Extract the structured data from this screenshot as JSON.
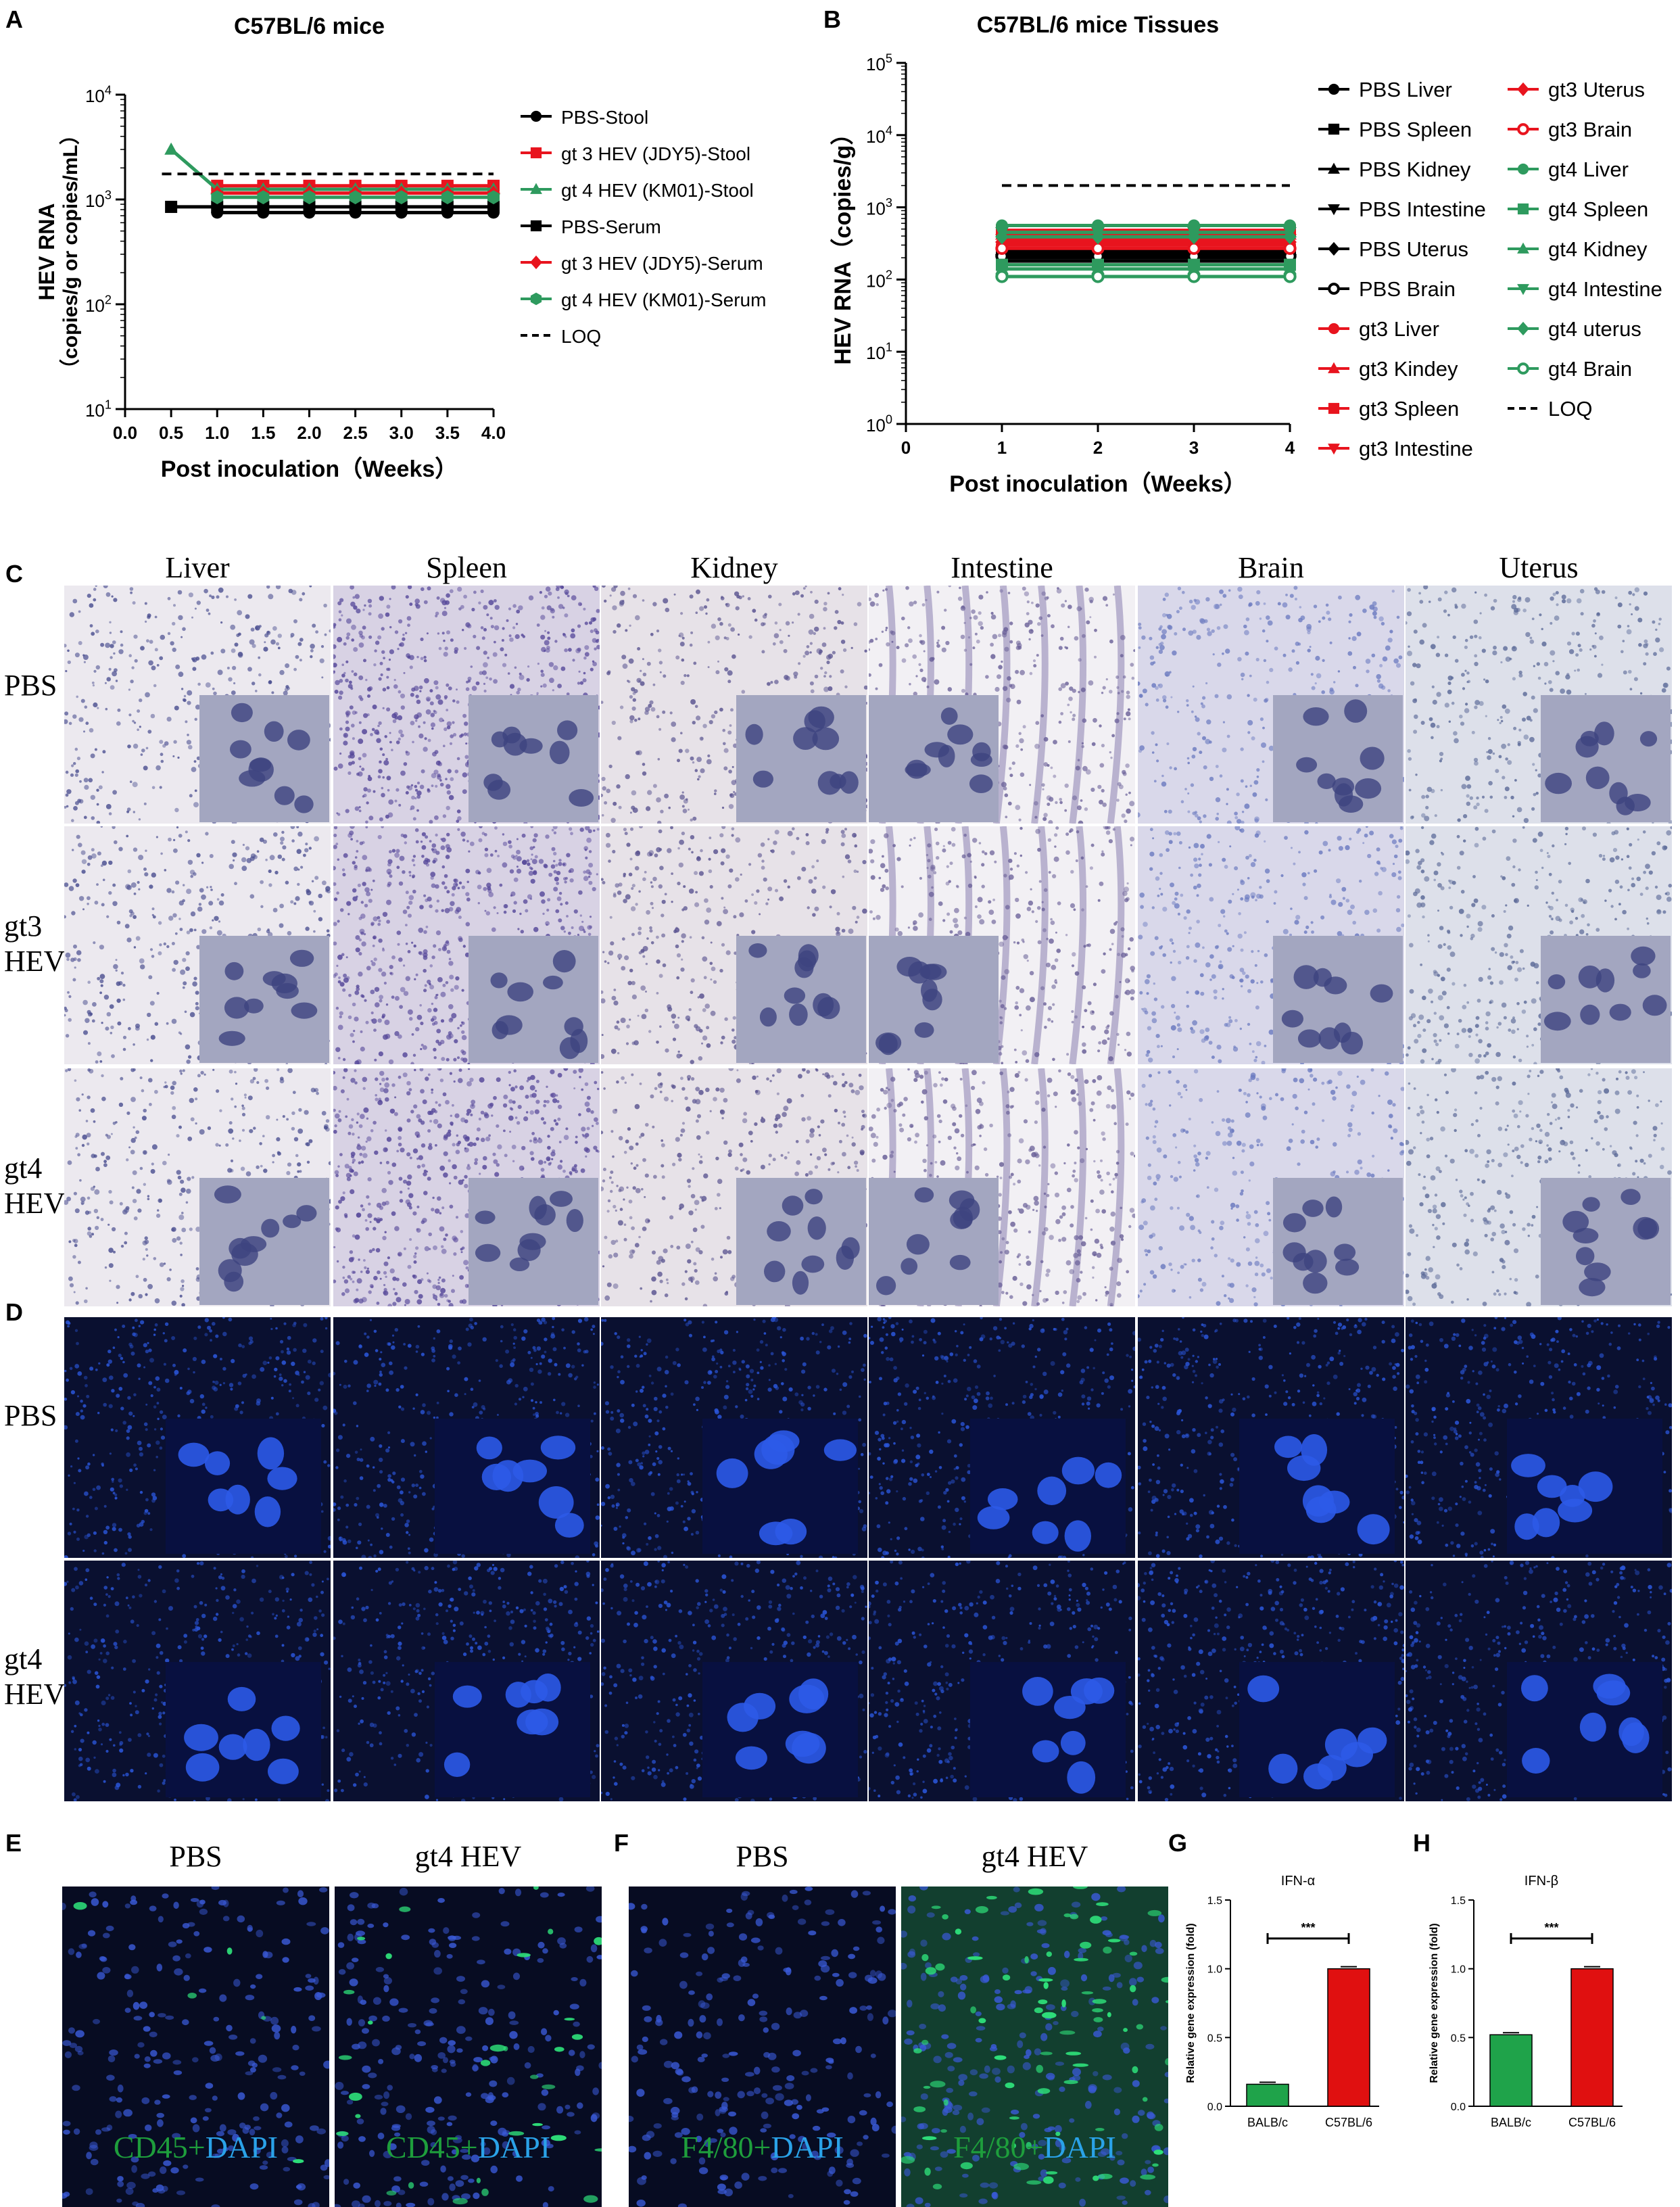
{
  "panels": {
    "A": "A",
    "B": "B",
    "C": "C",
    "D": "D",
    "E": "E",
    "F": "F",
    "G": "G",
    "H": "H"
  },
  "panel_c": {
    "columns": [
      "Liver",
      "Spleen",
      "Kidney",
      "Intestine",
      "Brain",
      "Uterus"
    ],
    "rows": [
      "PBS",
      "gt3\nHEV",
      "gt4\nHEV"
    ]
  },
  "panel_d": {
    "rows": [
      "PBS",
      "gt4\nHEV"
    ]
  },
  "panel_e": {
    "headers": [
      "PBS",
      "gt4 HEV"
    ],
    "captions": [
      {
        "marker": "CD45",
        "sep": "+",
        "dapi": "DAPI"
      },
      {
        "marker": "CD45",
        "sep": "+",
        "dapi": "DAPI"
      }
    ]
  },
  "panel_f": {
    "headers": [
      "PBS",
      "gt4 HEV"
    ],
    "captions": [
      {
        "marker": "F4/80",
        "sep": "+",
        "dapi": "DAPI"
      },
      {
        "marker": "F4/80",
        "sep": "+",
        "dapi": "DAPI"
      }
    ]
  },
  "colors": {
    "black": "#000000",
    "red": "#e8141e",
    "green": "#2e9a5e",
    "he_bg": "#ece8ef",
    "ihc_dot": "#3e4a9a",
    "dapi_bg": "#0a1030",
    "dapi_nucleus": "#2a55d8",
    "fitc": "#2ee07a",
    "bar_green": "#1fa34a",
    "bar_red": "#e01010",
    "caption_green": "#1e9e3c",
    "caption_blue": "#2aa2e8"
  },
  "chart_data": [
    {
      "id": "A",
      "type": "line",
      "title": "C57BL/6 mice",
      "xlabel": "Post inoculation（Weeks）",
      "ylabel": "HEV RNA",
      "ylabel2": "（copies/g or copies/mL）",
      "xlim": [
        0,
        4
      ],
      "ylim": [
        10,
        10000
      ],
      "yscale": "log",
      "xticks": [
        "0.0",
        "0.5",
        "1.0",
        "1.5",
        "2.0",
        "2.5",
        "3.0",
        "3.5",
        "4.0"
      ],
      "yticks": [
        {
          "base": "10",
          "exp": "1"
        },
        {
          "base": "10",
          "exp": "2"
        },
        {
          "base": "10",
          "exp": "3"
        },
        {
          "base": "10",
          "exp": "4"
        }
      ],
      "grid": false,
      "legend_position": "right",
      "series": [
        {
          "name": "PBS-Stool",
          "color": "#000000",
          "marker": "circle",
          "x": [
            1,
            1.5,
            2,
            2.5,
            3,
            3.5,
            4
          ],
          "y": [
            750,
            750,
            750,
            750,
            750,
            750,
            750
          ]
        },
        {
          "name": "gt 3 HEV (JDY5)-Stool",
          "color": "#e8141e",
          "marker": "square",
          "x": [
            1,
            1.5,
            2,
            2.5,
            3,
            3.5,
            4
          ],
          "y": [
            1350,
            1350,
            1350,
            1350,
            1350,
            1350,
            1350
          ]
        },
        {
          "name": "gt 4 HEV (KM01)-Stool",
          "color": "#2e9a5e",
          "marker": "triangle",
          "x": [
            0.5,
            1,
            1.5,
            2,
            2.5,
            3,
            3.5,
            4
          ],
          "y": [
            3000,
            1250,
            1250,
            1250,
            1250,
            1250,
            1250,
            1250
          ]
        },
        {
          "name": "PBS-Serum",
          "color": "#000000",
          "marker": "square",
          "x": [
            0.5,
            1,
            1.5,
            2,
            2.5,
            3,
            3.5,
            4
          ],
          "y": [
            850,
            850,
            850,
            850,
            850,
            850,
            850,
            850
          ]
        },
        {
          "name": "gt 3 HEV (JDY5)-Serum",
          "color": "#e8141e",
          "marker": "diamond",
          "x": [
            1,
            1.5,
            2,
            2.5,
            3,
            3.5,
            4
          ],
          "y": [
            1150,
            1150,
            1150,
            1150,
            1150,
            1150,
            1150
          ]
        },
        {
          "name": "gt 4 HEV (KM01)-Serum",
          "color": "#2e9a5e",
          "marker": "hexagon",
          "x": [
            1,
            1.5,
            2,
            2.5,
            3,
            3.5,
            4
          ],
          "y": [
            1050,
            1050,
            1050,
            1050,
            1050,
            1050,
            1050
          ]
        },
        {
          "name": "LOQ",
          "color": "#000000",
          "marker": "none",
          "dashed": true,
          "x": [
            0.4,
            4
          ],
          "y": [
            1750,
            1750
          ]
        }
      ]
    },
    {
      "id": "B",
      "type": "line",
      "title": "C57BL/6 mice Tissues",
      "xlabel": "Post inoculation（Weeks）",
      "ylabel": "HEV RNA（copies/g）",
      "xlim": [
        0,
        4
      ],
      "ylim": [
        1,
        100000
      ],
      "yscale": "log",
      "xticks": [
        "0",
        "1",
        "2",
        "3",
        "4"
      ],
      "yticks": [
        {
          "base": "10",
          "exp": "0"
        },
        {
          "base": "10",
          "exp": "1"
        },
        {
          "base": "10",
          "exp": "2"
        },
        {
          "base": "10",
          "exp": "3"
        },
        {
          "base": "10",
          "exp": "4"
        },
        {
          "base": "10",
          "exp": "5"
        }
      ],
      "grid": false,
      "legend_position": "right",
      "series": [
        {
          "name": "PBS Liver",
          "color": "#000000",
          "marker": "circle",
          "x": [
            1,
            2,
            3,
            4
          ],
          "y": [
            240,
            240,
            240,
            240
          ]
        },
        {
          "name": "PBS Spleen",
          "color": "#000000",
          "marker": "square",
          "x": [
            1,
            2,
            3,
            4
          ],
          "y": [
            200,
            200,
            200,
            200
          ]
        },
        {
          "name": "PBS Kidney",
          "color": "#000000",
          "marker": "triangle",
          "x": [
            1,
            2,
            3,
            4
          ],
          "y": [
            260,
            260,
            260,
            260
          ]
        },
        {
          "name": "PBS Intestine",
          "color": "#000000",
          "marker": "triangle-down",
          "x": [
            1,
            2,
            3,
            4
          ],
          "y": [
            180,
            180,
            180,
            180
          ]
        },
        {
          "name": "PBS Uterus",
          "color": "#000000",
          "marker": "diamond",
          "x": [
            1,
            2,
            3,
            4
          ],
          "y": [
            220,
            220,
            220,
            220
          ]
        },
        {
          "name": "PBS Brain",
          "color": "#000000",
          "marker": "circle-open",
          "x": [
            1,
            2,
            3,
            4
          ],
          "y": [
            210,
            210,
            210,
            210
          ]
        },
        {
          "name": "gt3 Liver",
          "color": "#e8141e",
          "marker": "circle",
          "x": [
            1,
            2,
            3,
            4
          ],
          "y": [
            300,
            300,
            300,
            300
          ]
        },
        {
          "name": "gt3 Kindey",
          "color": "#e8141e",
          "marker": "triangle",
          "x": [
            1,
            2,
            3,
            4
          ],
          "y": [
            420,
            420,
            420,
            420
          ]
        },
        {
          "name": "gt3 Spleen",
          "color": "#e8141e",
          "marker": "square",
          "x": [
            1,
            2,
            3,
            4
          ],
          "y": [
            480,
            480,
            480,
            480
          ]
        },
        {
          "name": "gt3 Intestine",
          "color": "#e8141e",
          "marker": "triangle-down",
          "x": [
            1,
            2,
            3,
            4
          ],
          "y": [
            360,
            360,
            360,
            360
          ]
        },
        {
          "name": "gt3 Uterus",
          "color": "#e8141e",
          "marker": "diamond",
          "x": [
            1,
            2,
            3,
            4
          ],
          "y": [
            330,
            330,
            330,
            330
          ]
        },
        {
          "name": "gt3 Brain",
          "color": "#e8141e",
          "marker": "circle-open",
          "x": [
            1,
            2,
            3,
            4
          ],
          "y": [
            270,
            270,
            270,
            270
          ]
        },
        {
          "name": "gt4 Liver",
          "color": "#2e9a5e",
          "marker": "circle",
          "x": [
            1,
            2,
            3,
            4
          ],
          "y": [
            560,
            560,
            560,
            560
          ]
        },
        {
          "name": "gt4 Spleen",
          "color": "#2e9a5e",
          "marker": "square",
          "x": [
            1,
            2,
            3,
            4
          ],
          "y": [
            160,
            160,
            160,
            160
          ]
        },
        {
          "name": "gt4 Kidney",
          "color": "#2e9a5e",
          "marker": "triangle",
          "x": [
            1,
            2,
            3,
            4
          ],
          "y": [
            140,
            140,
            140,
            140
          ]
        },
        {
          "name": "gt4 Intestine",
          "color": "#2e9a5e",
          "marker": "triangle-down",
          "x": [
            1,
            2,
            3,
            4
          ],
          "y": [
            450,
            450,
            450,
            450
          ]
        },
        {
          "name": "gt4 uterus",
          "color": "#2e9a5e",
          "marker": "diamond",
          "x": [
            1,
            2,
            3,
            4
          ],
          "y": [
            390,
            390,
            390,
            390
          ]
        },
        {
          "name": "gt4 Brain",
          "color": "#2e9a5e",
          "marker": "circle-open",
          "x": [
            1,
            2,
            3,
            4
          ],
          "y": [
            110,
            110,
            110,
            110
          ]
        },
        {
          "name": "LOQ",
          "color": "#000000",
          "marker": "none",
          "dashed": true,
          "x": [
            1,
            4
          ],
          "y": [
            2000,
            2000
          ]
        }
      ]
    },
    {
      "id": "G",
      "type": "bar",
      "title": "IFN-α",
      "ylabel": "Relative gene expression (fold)",
      "categories": [
        "BALB/c",
        "C57BL/6"
      ],
      "values": [
        0.16,
        1.0
      ],
      "colors": [
        "#1fa34a",
        "#e01010"
      ],
      "ylim": [
        0,
        1.5
      ],
      "yticks": [
        "0.0",
        "0.5",
        "1.0",
        "1.5"
      ],
      "significance": "***"
    },
    {
      "id": "H",
      "type": "bar",
      "title": "IFN-β",
      "ylabel": "Relative gene expression (fold)",
      "categories": [
        "BALB/c",
        "C57BL/6"
      ],
      "values": [
        0.52,
        1.0
      ],
      "colors": [
        "#1fa34a",
        "#e01010"
      ],
      "ylim": [
        0,
        1.5
      ],
      "yticks": [
        "0.0",
        "0.5",
        "1.0",
        "1.5"
      ],
      "significance": "***"
    }
  ]
}
